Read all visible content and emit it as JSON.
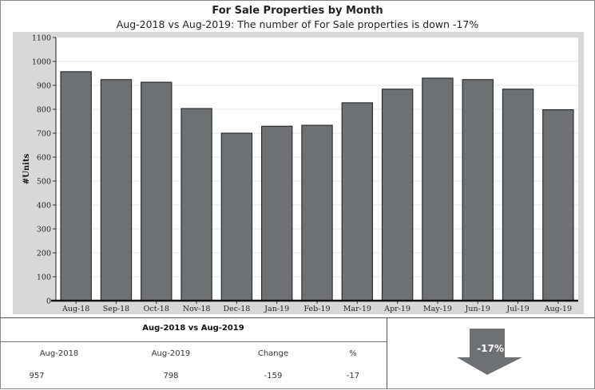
{
  "chart_data": {
    "type": "bar",
    "title": "For Sale Properties by Month",
    "subtitle": "Aug-2018 vs Aug-2019: The number of For Sale properties is down -17%",
    "xlabel": "",
    "ylabel": "#Units",
    "ylim": [
      0,
      1100
    ],
    "yticks": [
      "0",
      "100",
      "200",
      "300",
      "400",
      "500",
      "600",
      "700",
      "800",
      "900",
      "1000",
      "1100"
    ],
    "grid": true,
    "categories": [
      "Aug-18",
      "Sep-18",
      "Oct-18",
      "Nov-18",
      "Dec-18",
      "Jan-19",
      "Feb-19",
      "Mar-19",
      "Apr-19",
      "May-19",
      "Jun-19",
      "Jul-19",
      "Aug-19"
    ],
    "values": [
      957,
      924,
      913,
      803,
      700,
      729,
      733,
      827,
      884,
      930,
      924,
      884,
      798
    ],
    "colors": {
      "bar": "#6e7174",
      "bar_edge": "#2e2e2e",
      "plot_bg": "#ffffff",
      "frame_bg": "#d8d8d8",
      "grid": "#e4e4e4"
    }
  },
  "comparison": {
    "title": "Aug-2018 vs Aug-2019",
    "headers": [
      "Aug-2018",
      "Aug-2019",
      "Change",
      "%"
    ],
    "values": [
      "957",
      "798",
      "-159",
      "-17"
    ]
  },
  "indicator": {
    "label": "-17%",
    "direction": "down",
    "icon": "down-arrow-icon",
    "color": "#6e7174"
  }
}
